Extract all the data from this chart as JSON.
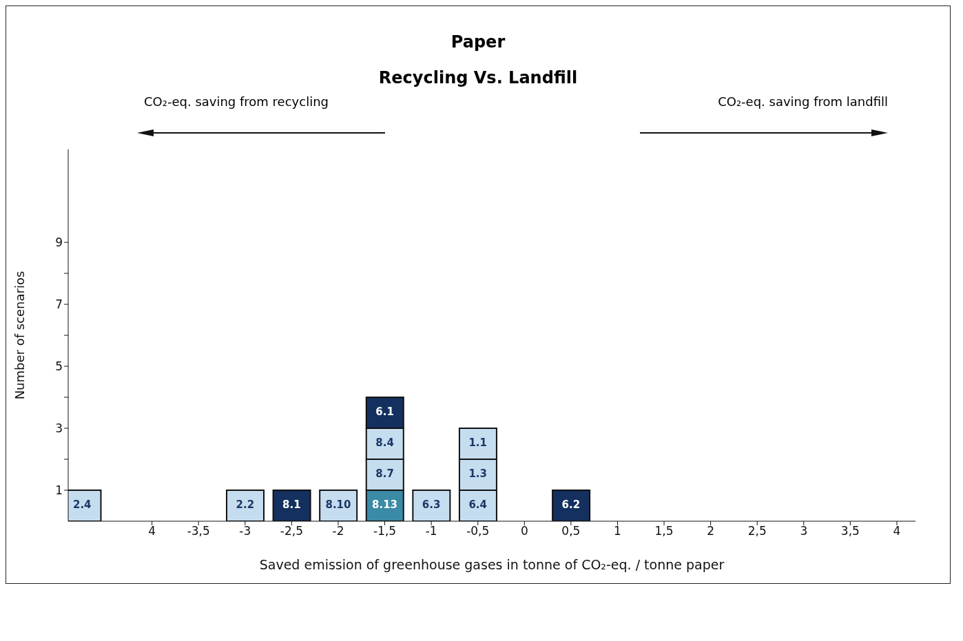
{
  "chart_data": {
    "type": "bar",
    "stacked": true,
    "title": "Paper",
    "subtitle": "Recycling Vs. Landfill",
    "xlabel": "Saved emission of greenhouse gases in tonne of CO₂-eq. / tonne paper",
    "ylabel": "Number of scenarios",
    "annotations": [
      "CO₂-eq. saving from recycling",
      "CO₂-eq. saving from landfill",
      {
        "text": "2.4",
        "x": -4.75,
        "y": 1
      },
      {
        "text": "2.2",
        "x": -3,
        "y": 1
      },
      {
        "text": "8.1",
        "x": -2.5,
        "y": 1
      },
      {
        "text": "8.10",
        "x": -2,
        "y": 1
      },
      {
        "text": "8.13",
        "x": -1.5,
        "y": 1
      },
      {
        "text": "6.3",
        "x": -1,
        "y": 1
      },
      {
        "text": "6.4",
        "x": -0.5,
        "y": 1
      },
      {
        "text": "6.2",
        "x": 0.5,
        "y": 1
      },
      {
        "text": "8.7",
        "x": -1.5,
        "y": 2
      },
      {
        "text": "1.3",
        "x": -0.5,
        "y": 2
      },
      {
        "text": "8.4",
        "x": -1.5,
        "y": 3
      },
      {
        "text": "1.1",
        "x": -0.5,
        "y": 3
      },
      {
        "text": "6.1",
        "x": -1.5,
        "y": 4
      }
    ],
    "xlim": [
      -4.9,
      4.2
    ],
    "xticks": [
      {
        "value": -4,
        "label": "4"
      },
      {
        "value": -3.5,
        "label": "-3,5"
      },
      -3,
      {
        "value": -2.5,
        "label": "-2,5"
      },
      -2,
      {
        "value": -1.5,
        "label": "-1,5"
      },
      -1,
      {
        "value": -0.5,
        "label": "-0,5"
      },
      0,
      {
        "value": 0.5,
        "label": "0,5"
      },
      1,
      {
        "value": 1.5,
        "label": "1,5"
      },
      2,
      {
        "value": 2.5,
        "label": "2,5"
      },
      3,
      {
        "value": 3.5,
        "label": "3,5"
      },
      4
    ],
    "ylim": [
      0,
      12
    ],
    "yticks": [
      1,
      {
        "value": 2,
        "label": null
      },
      3,
      {
        "value": 4,
        "label": null
      },
      5,
      {
        "value": 6,
        "label": null
      },
      7,
      {
        "value": 8,
        "label": null
      },
      9
    ],
    "series": [
      {
        "x": [
          -4.75,
          -3,
          -2.5,
          -2,
          -1.5,
          -1,
          -0.5,
          0.5
        ],
        "values": [
          1,
          1,
          1,
          1,
          1,
          1,
          1,
          1
        ],
        "colors": [
          "#c6ddef",
          "#c6ddef",
          "#13305f",
          "#c6ddef",
          "#3b8aa6",
          "#c6ddef",
          "#c6ddef",
          "#13305f"
        ]
      },
      {
        "x": [
          -1.5,
          -0.5
        ],
        "values": [
          1,
          1
        ],
        "colors": [
          "#c6ddef",
          "#c6ddef"
        ]
      },
      {
        "x": [
          -1.5,
          -0.5
        ],
        "values": [
          1,
          1
        ],
        "colors": [
          "#c6ddef",
          "#c6ddef"
        ]
      },
      {
        "x": [
          -1.5
        ],
        "values": [
          1
        ],
        "colors": [
          "#13305f"
        ]
      }
    ]
  }
}
